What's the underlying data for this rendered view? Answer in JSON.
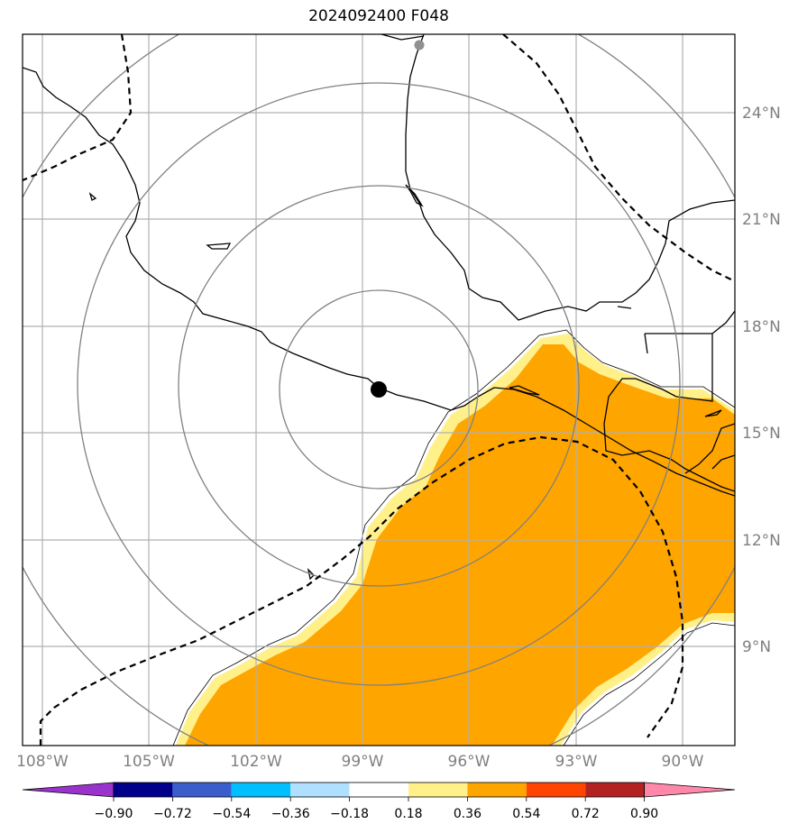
{
  "title": "2024092400 F048",
  "map": {
    "lon_ticks": [
      "108°W",
      "105°W",
      "102°W",
      "99°W",
      "96°W",
      "93°W",
      "90°W"
    ],
    "lat_ticks": [
      "9°N",
      "12°N",
      "15°N",
      "18°N",
      "21°N",
      "24°N"
    ],
    "extent": {
      "lon_min": -108.5,
      "lon_max": -88.5,
      "lat_min": 6.5,
      "lat_max": 26.5
    },
    "storm_center": {
      "lon": -98.5,
      "lat": 16.3
    },
    "range_rings_deg": [
      2.7,
      5.5,
      8.3,
      11.0
    ],
    "colors": {
      "field": "#ffa500",
      "field_edge": "#fff08a",
      "coast": "#000000",
      "grid": "#b0b0b0",
      "rings": "#808080",
      "marker": "#000000",
      "aux_marker": "#909090"
    }
  },
  "colorbar": {
    "labels": [
      "−0.90",
      "−0.72",
      "−0.54",
      "−0.36",
      "−0.18",
      "0.18",
      "0.36",
      "0.54",
      "0.72",
      "0.90"
    ],
    "colors": [
      "#9933cc",
      "#00008b",
      "#3a5fcd",
      "#00bfff",
      "#b0e0ff",
      "#ffffff",
      "#fff08a",
      "#ffa500",
      "#ff4500",
      "#b22222",
      "#ff88aa"
    ]
  }
}
